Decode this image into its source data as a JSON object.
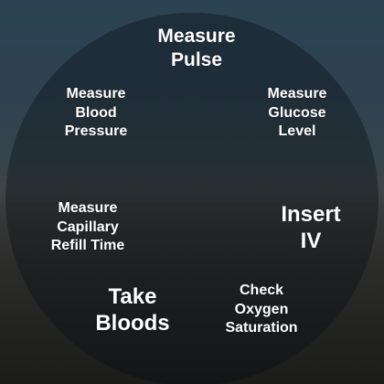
{
  "menu": {
    "options": [
      {
        "id": "measure_pulse",
        "label": "Measure\nPulse"
      },
      {
        "id": "measure_blood_pressure",
        "label": "Measure\nBlood\nPressure"
      },
      {
        "id": "measure_glucose_level",
        "label": "Measure\nGlucose\nLevel"
      },
      {
        "id": "measure_capillary_refill_time",
        "label": "Measure\nCapillary\nRefill Time"
      },
      {
        "id": "insert_iv",
        "label": "Insert\nIV"
      },
      {
        "id": "take_bloods",
        "label": "Take\nBloods"
      },
      {
        "id": "check_oxygen_saturation",
        "label": "Check\nOxygen\nSaturation"
      }
    ]
  },
  "colors": {
    "text": "#ffffff",
    "disc_overlay": "#080c12",
    "sky_top": "#2c4353",
    "floor": "#1b1b1a"
  }
}
